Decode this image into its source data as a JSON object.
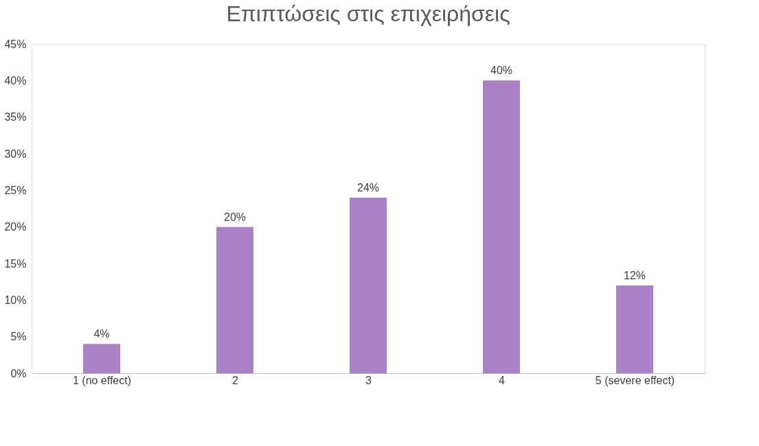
{
  "chart_data": {
    "type": "bar",
    "title": "Επιπτώσεις στις επιχειρήσεις",
    "categories": [
      "1 (no effect)",
      "2",
      "3",
      "4",
      "5 (severe effect)"
    ],
    "values": [
      4,
      20,
      24,
      40,
      12
    ],
    "color": "#ab82c5",
    "value_labels": [
      "4%",
      "20%",
      "24%",
      "40%",
      "12%"
    ],
    "ylim": [
      0,
      45
    ],
    "yticks": [
      {
        "value": 0,
        "label": "0%"
      },
      {
        "value": 5,
        "label": "5%"
      },
      {
        "value": 10,
        "label": "10%"
      },
      {
        "value": 15,
        "label": "15%"
      },
      {
        "value": 20,
        "label": "20%"
      },
      {
        "value": 25,
        "label": "25%"
      },
      {
        "value": 30,
        "label": "30%"
      },
      {
        "value": 35,
        "label": "35%"
      },
      {
        "value": 40,
        "label": "40%"
      },
      {
        "value": 45,
        "label": "45%"
      }
    ],
    "grid": false
  }
}
